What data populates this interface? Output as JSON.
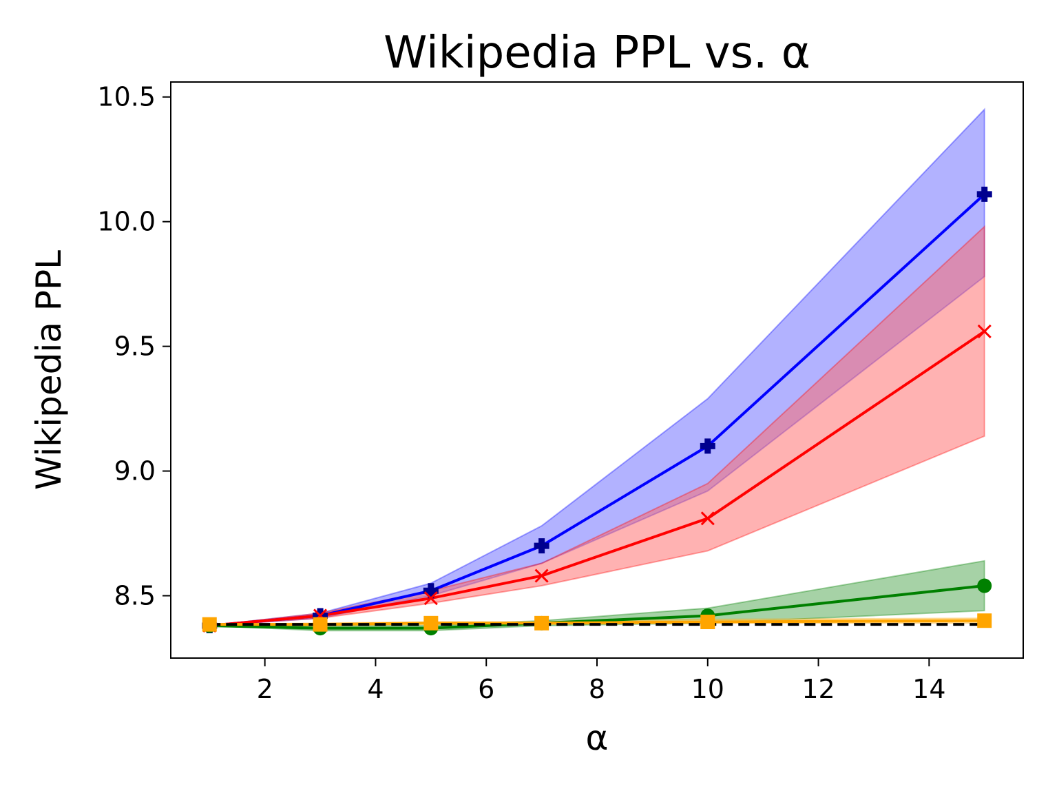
{
  "chart_data": {
    "type": "line",
    "title": "Wikipedia PPL vs. α",
    "xlabel": "α",
    "ylabel": "Wikipedia PPL",
    "xlim": [
      0.3,
      15.7
    ],
    "ylim": [
      8.25,
      10.56
    ],
    "xticks": [
      2,
      4,
      6,
      8,
      10,
      12,
      14
    ],
    "yticks": [
      8.5,
      9.0,
      9.5,
      10.0,
      10.5
    ],
    "xtick_labels": [
      "2",
      "4",
      "6",
      "8",
      "10",
      "12",
      "14"
    ],
    "ytick_labels": [
      "8.5",
      "9.0",
      "9.5",
      "10.0",
      "10.5"
    ],
    "grid": false,
    "x": [
      1,
      3,
      5,
      7,
      10,
      15
    ],
    "series": [
      {
        "color": "#00008f",
        "line_color": "#0000ff",
        "band_color": "#6666ff",
        "marker": "plus",
        "values": [
          8.38,
          8.42,
          8.52,
          8.7,
          9.1,
          10.11
        ],
        "lower": [
          8.38,
          8.41,
          8.5,
          8.63,
          8.92,
          9.78
        ],
        "upper": [
          8.38,
          8.43,
          8.55,
          8.78,
          9.29,
          10.45
        ]
      },
      {
        "color": "#ff0000",
        "line_color": "#ff0000",
        "band_color": "#ff6666",
        "marker": "x",
        "values": [
          8.38,
          8.42,
          8.49,
          8.58,
          8.81,
          9.56
        ],
        "lower": [
          8.38,
          8.41,
          8.47,
          8.54,
          8.68,
          9.14
        ],
        "upper": [
          8.38,
          8.43,
          8.52,
          8.63,
          8.95,
          9.98
        ]
      },
      {
        "color": "#008000",
        "line_color": "#008000",
        "band_color": "#4da64d",
        "marker": "circle",
        "values": [
          8.38,
          8.37,
          8.37,
          8.39,
          8.42,
          8.54
        ],
        "lower": [
          8.38,
          8.36,
          8.36,
          8.38,
          8.39,
          8.44
        ],
        "upper": [
          8.38,
          8.38,
          8.38,
          8.4,
          8.45,
          8.64
        ]
      },
      {
        "color": "#ffa500",
        "line_color": "#ffa500",
        "band_color": "#ffcc66",
        "marker": "square",
        "values": [
          8.385,
          8.385,
          8.39,
          8.39,
          8.395,
          8.4
        ],
        "lower": [
          8.385,
          8.38,
          8.385,
          8.385,
          8.39,
          8.39
        ],
        "upper": [
          8.385,
          8.39,
          8.395,
          8.395,
          8.405,
          8.41
        ]
      }
    ],
    "reference_line": {
      "y": 8.385,
      "color": "#000000",
      "style": "dashed"
    }
  }
}
